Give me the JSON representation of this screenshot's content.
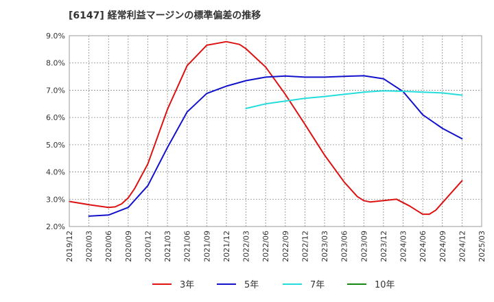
{
  "chart_data": {
    "type": "line",
    "title": "[6147]  経常利益マージンの標準偏差の推移",
    "xlabel": "",
    "ylabel": "",
    "ylim": [
      2.0,
      9.0
    ],
    "y_ticks": [
      "2.0%",
      "3.0%",
      "4.0%",
      "5.0%",
      "6.0%",
      "7.0%",
      "8.0%",
      "9.0%"
    ],
    "x_ticks": [
      "2019/12",
      "2020/03",
      "2020/06",
      "2020/09",
      "2020/12",
      "2021/03",
      "2021/06",
      "2021/09",
      "2021/12",
      "2022/03",
      "2022/06",
      "2022/09",
      "2022/12",
      "2023/03",
      "2023/06",
      "2023/09",
      "2023/12",
      "2024/03",
      "2024/06",
      "2024/09",
      "2024/12",
      "2025/03"
    ],
    "grid": true,
    "legend_position": "bottom",
    "series": [
      {
        "name": "3年",
        "color": "#dd1111",
        "points": [
          [
            "2019/12",
            2.92
          ],
          [
            "2020/03",
            2.8
          ],
          [
            "2020/06",
            2.7
          ],
          [
            "2020/07",
            2.72
          ],
          [
            "2020/08",
            2.83
          ],
          [
            "2020/09",
            3.05
          ],
          [
            "2020/10",
            3.4
          ],
          [
            "2020/12",
            4.3
          ],
          [
            "2021/03",
            6.3
          ],
          [
            "2021/06",
            7.9
          ],
          [
            "2021/09",
            8.65
          ],
          [
            "2021/12",
            8.78
          ],
          [
            "2022/02",
            8.68
          ],
          [
            "2022/03",
            8.52
          ],
          [
            "2022/06",
            7.85
          ],
          [
            "2022/09",
            6.85
          ],
          [
            "2022/12",
            5.75
          ],
          [
            "2023/03",
            4.62
          ],
          [
            "2023/06",
            3.63
          ],
          [
            "2023/08",
            3.1
          ],
          [
            "2023/09",
            2.95
          ],
          [
            "2023/10",
            2.9
          ],
          [
            "2023/12",
            2.95
          ],
          [
            "2024/02",
            3.0
          ],
          [
            "2024/04",
            2.75
          ],
          [
            "2024/05",
            2.6
          ],
          [
            "2024/06",
            2.45
          ],
          [
            "2024/07",
            2.45
          ],
          [
            "2024/08",
            2.6
          ],
          [
            "2024/12",
            3.68
          ]
        ]
      },
      {
        "name": "5年",
        "color": "#1111cc",
        "points": [
          [
            "2020/03",
            2.38
          ],
          [
            "2020/06",
            2.42
          ],
          [
            "2020/09",
            2.7
          ],
          [
            "2020/12",
            3.5
          ],
          [
            "2021/03",
            4.9
          ],
          [
            "2021/06",
            6.2
          ],
          [
            "2021/09",
            6.88
          ],
          [
            "2021/12",
            7.15
          ],
          [
            "2022/03",
            7.35
          ],
          [
            "2022/06",
            7.48
          ],
          [
            "2022/09",
            7.52
          ],
          [
            "2022/12",
            7.48
          ],
          [
            "2023/03",
            7.48
          ],
          [
            "2023/06",
            7.51
          ],
          [
            "2023/09",
            7.53
          ],
          [
            "2023/12",
            7.42
          ],
          [
            "2024/03",
            6.95
          ],
          [
            "2024/06",
            6.1
          ],
          [
            "2024/09",
            5.6
          ],
          [
            "2024/12",
            5.22
          ]
        ]
      },
      {
        "name": "7年",
        "color": "#22dddd",
        "points": [
          [
            "2022/03",
            6.33
          ],
          [
            "2022/06",
            6.5
          ],
          [
            "2022/09",
            6.6
          ],
          [
            "2022/12",
            6.7
          ],
          [
            "2023/03",
            6.77
          ],
          [
            "2023/06",
            6.85
          ],
          [
            "2023/09",
            6.93
          ],
          [
            "2023/12",
            6.98
          ],
          [
            "2024/03",
            6.96
          ],
          [
            "2024/06",
            6.93
          ],
          [
            "2024/09",
            6.9
          ],
          [
            "2024/12",
            6.82
          ]
        ]
      },
      {
        "name": "10年",
        "color": "#118811",
        "points": []
      }
    ]
  }
}
